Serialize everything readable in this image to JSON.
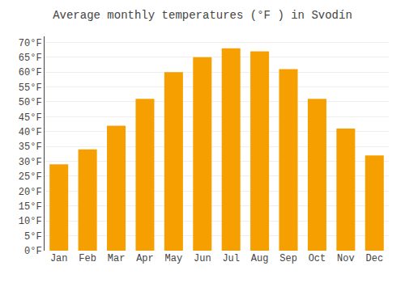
{
  "chart_data": {
    "type": "bar",
    "title": "Average monthly temperatures (°F ) in Svodín",
    "categories": [
      "Jan",
      "Feb",
      "Mar",
      "Apr",
      "May",
      "Jun",
      "Jul",
      "Aug",
      "Sep",
      "Oct",
      "Nov",
      "Dec"
    ],
    "values": [
      29,
      34,
      42,
      51,
      60,
      65,
      68,
      67,
      61,
      51,
      41,
      32
    ],
    "color": "#F5A000",
    "ylim": [
      0,
      72
    ],
    "yticks": [
      {
        "value": 0,
        "label": "0°F"
      },
      {
        "value": 5,
        "label": "5°F"
      },
      {
        "value": 10,
        "label": "10°F"
      },
      {
        "value": 15,
        "label": "15°F"
      },
      {
        "value": 20,
        "label": "20°F"
      },
      {
        "value": 25,
        "label": "25°F"
      },
      {
        "value": 30,
        "label": "30°F"
      },
      {
        "value": 35,
        "label": "35°F"
      },
      {
        "value": 40,
        "label": "40°F"
      },
      {
        "value": 45,
        "label": "45°F"
      },
      {
        "value": 50,
        "label": "50°F"
      },
      {
        "value": 55,
        "label": "55°F"
      },
      {
        "value": 60,
        "label": "60°F"
      },
      {
        "value": 65,
        "label": "65°F"
      },
      {
        "value": 70,
        "label": "70°F"
      }
    ],
    "grid": true
  }
}
